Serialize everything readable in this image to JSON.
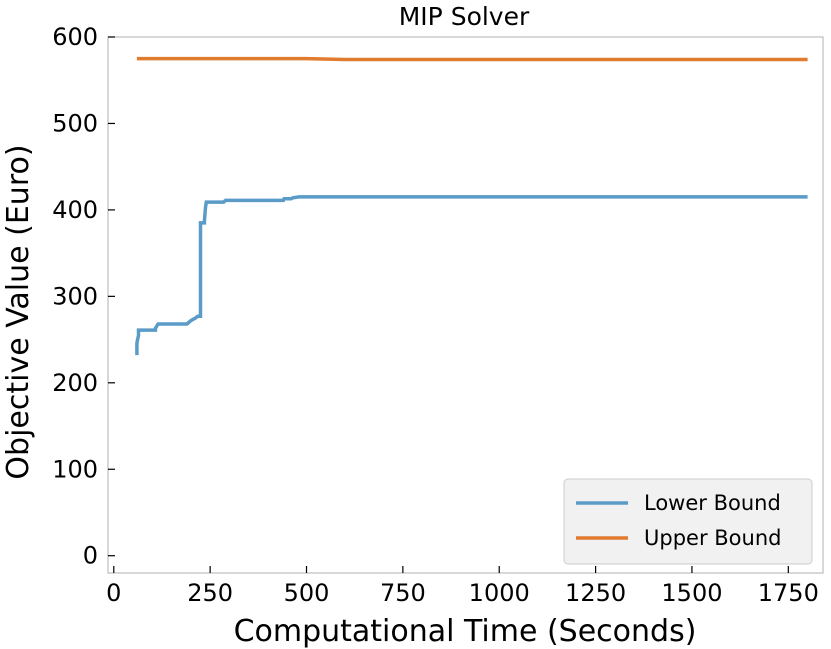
{
  "chart_data": {
    "type": "line",
    "title": "MIP Solver",
    "xlabel": "Computational Time (Seconds)",
    "ylabel": "Objective Value (Euro)",
    "xlim": [
      -15,
      1840
    ],
    "ylim": [
      -20,
      600
    ],
    "xticks": [
      0,
      250,
      500,
      750,
      1000,
      1250,
      1500,
      1750
    ],
    "yticks": [
      0,
      100,
      200,
      300,
      400,
      500,
      600
    ],
    "grid": false,
    "legend_position": "lower-right",
    "series": [
      {
        "name": "Lower Bound",
        "color": "#5a9bc8",
        "x": [
          60,
          60,
          64,
          64,
          108,
          108,
          115,
          190,
          200,
          212,
          218,
          225,
          225,
          235,
          235,
          238,
          240,
          285,
          290,
          440,
          442,
          460,
          465,
          480,
          1800
        ],
        "y": [
          232,
          246,
          255,
          261,
          261,
          263,
          268,
          268,
          272,
          275,
          277,
          277,
          385,
          385,
          387,
          403,
          409,
          409,
          411,
          411,
          413,
          413,
          414,
          415,
          415
        ]
      },
      {
        "name": "Upper Bound",
        "color": "#e07b2f",
        "x": [
          60,
          500,
          600,
          1800
        ],
        "y": [
          575,
          575,
          574,
          574
        ]
      }
    ]
  }
}
